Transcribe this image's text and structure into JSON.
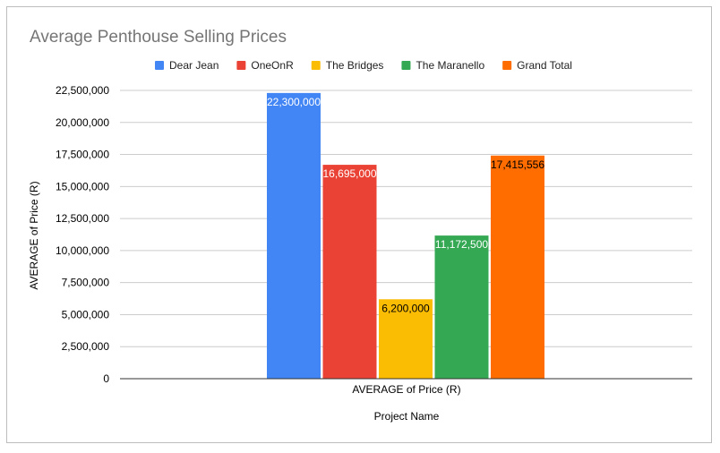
{
  "chart_data": {
    "type": "bar",
    "title": "Average Penthouse Selling Prices",
    "category_label": "AVERAGE of Price (R)",
    "xlabel": "Project Name",
    "ylabel": "AVERAGE of Price (R)",
    "ylim": [
      0,
      22500000
    ],
    "yticks": [
      "0",
      "2,500,000",
      "5,000,000",
      "7,500,000",
      "10,000,000",
      "12,500,000",
      "15,000,000",
      "17,500,000",
      "20,000,000",
      "22,500,000"
    ],
    "ytick_values": [
      0,
      2500000,
      5000000,
      7500000,
      10000000,
      12500000,
      15000000,
      17500000,
      20000000,
      22500000
    ],
    "grid": true,
    "legend_position": "top",
    "series": [
      {
        "name": "Dear Jean",
        "value": 22300000,
        "label": "22,300,000",
        "color": "#4285f4",
        "label_color": "#ffffff"
      },
      {
        "name": "OneOnR",
        "value": 16695000,
        "label": "16,695,000",
        "color": "#ea4335",
        "label_color": "#ffffff"
      },
      {
        "name": "The Bridges",
        "value": 6200000,
        "label": "6,200,000",
        "color": "#fbbc04",
        "label_color": "#000000"
      },
      {
        "name": "The Maranello",
        "value": 11172500,
        "label": "11,172,500",
        "color": "#34a853",
        "label_color": "#ffffff"
      },
      {
        "name": "Grand Total",
        "value": 17415556,
        "label": "17,415,556",
        "color": "#ff6d01",
        "label_color": "#000000"
      }
    ]
  }
}
